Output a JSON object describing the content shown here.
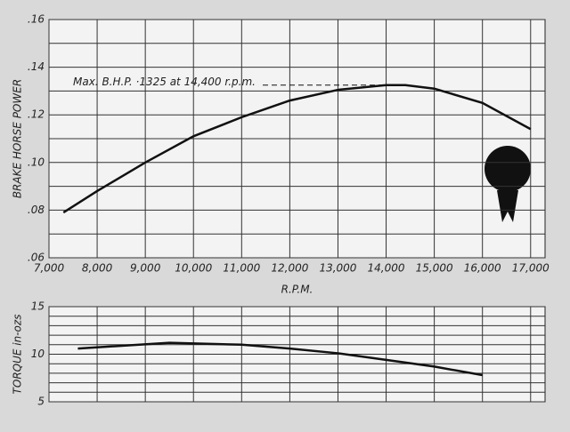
{
  "chart_data": [
    {
      "type": "line",
      "y_label": "BRAKE HORSE POWER",
      "x_label": "R.P.M.",
      "annotation": "Max. B.H.P. ·1325 at 14,400 r.p.m.",
      "annotation_value": 0.1325,
      "annotation_x": 14400,
      "xlim": [
        7000,
        17300
      ],
      "xticks": [
        {
          "value": 7000,
          "label": "7,000"
        },
        {
          "value": 8000,
          "label": "8,000"
        },
        {
          "value": 9000,
          "label": "9,000"
        },
        {
          "value": 10000,
          "label": "10,000"
        },
        {
          "value": 11000,
          "label": "11,000"
        },
        {
          "value": 12000,
          "label": "12,000"
        },
        {
          "value": 13000,
          "label": "13,000"
        },
        {
          "value": 14000,
          "label": "14,000"
        },
        {
          "value": 15000,
          "label": "15,000"
        },
        {
          "value": 16000,
          "label": "16,000"
        },
        {
          "value": 17000,
          "label": "17,000"
        }
      ],
      "ylim": [
        0.06,
        0.16
      ],
      "yticks": [
        {
          "value": 0.06,
          "label": ".06"
        },
        {
          "value": 0.08,
          "label": ".08"
        },
        {
          "value": 0.1,
          "label": ".10"
        },
        {
          "value": 0.12,
          "label": ".12"
        },
        {
          "value": 0.14,
          "label": ".14"
        },
        {
          "value": 0.16,
          "label": ".16"
        }
      ],
      "y_minor_ticks": [
        0.07,
        0.09,
        0.11,
        0.13,
        0.15
      ],
      "grid": true,
      "x": [
        7300,
        8000,
        9000,
        10000,
        11000,
        12000,
        13000,
        14000,
        14400,
        15000,
        16000,
        17000
      ],
      "series": [
        {
          "color": "#111111",
          "values": [
            0.079,
            0.088,
            0.1,
            0.111,
            0.119,
            0.126,
            0.1305,
            0.1325,
            0.1325,
            0.131,
            0.125,
            0.114
          ]
        }
      ]
    },
    {
      "type": "line",
      "y_label": "TORQUE in-ozs",
      "xlim": [
        7000,
        17300
      ],
      "ylim": [
        5,
        15
      ],
      "yticks": [
        5,
        10,
        15
      ],
      "y_minor_ticks": [
        6,
        7,
        8,
        9,
        11,
        12,
        13,
        14
      ],
      "grid": true,
      "x": [
        7600,
        9500,
        11000,
        12000,
        13000,
        14000,
        15000,
        16000
      ],
      "series": [
        {
          "color": "#111111",
          "values": [
            10.6,
            11.2,
            11.0,
            10.6,
            10.1,
            9.4,
            8.7,
            7.8
          ]
        }
      ]
    }
  ]
}
